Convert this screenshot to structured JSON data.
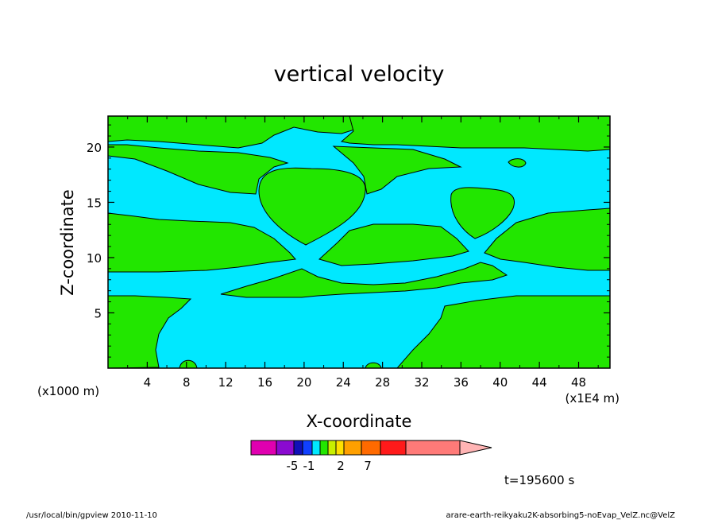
{
  "chart_data": {
    "type": "heatmap",
    "title": "vertical velocity",
    "xlabel": "X-coordinate",
    "ylabel": "Z-coordinate",
    "x_unit_note": "(x1E4 m)",
    "y_unit_note": "(x1000 m)",
    "xlim": [
      0,
      51.2
    ],
    "ylim": [
      0,
      22.8
    ],
    "x_ticks": [
      "4",
      "8",
      "12",
      "16",
      "20",
      "24",
      "28",
      "32",
      "36",
      "40",
      "44",
      "48"
    ],
    "y_ticks": [
      "5",
      "10",
      "15",
      "20"
    ],
    "background_level_color": "#00e8ff",
    "positive_level_color": "#22e600",
    "contour_color": "#000000",
    "colorbar": {
      "colors": [
        "#e000b0",
        "#8a0ad0",
        "#1010b8",
        "#1040ff",
        "#00e8ff",
        "#22e600",
        "#c8f000",
        "#ffe000",
        "#ffa000",
        "#ff6a00",
        "#ff1a1a",
        "#ff7a78",
        "#ffb4b4"
      ],
      "tick_labels": [
        "-5",
        "-1",
        "2",
        "7"
      ],
      "extend": "max"
    },
    "regions": [
      {
        "name": "left-mid-band",
        "x": [
          0,
          20
        ],
        "z": [
          10,
          14
        ]
      },
      {
        "name": "center-dome",
        "x": [
          15,
          26
        ],
        "z": [
          11,
          18
        ]
      },
      {
        "name": "right-dome",
        "x": [
          35,
          41
        ],
        "z": [
          11.5,
          16
        ]
      },
      {
        "name": "center-mid-band",
        "x": [
          22,
          36
        ],
        "z": [
          9.5,
          13
        ]
      },
      {
        "name": "right-mid-band",
        "x": [
          38,
          51.2
        ],
        "z": [
          9,
          14
        ]
      },
      {
        "name": "lower-left",
        "x": [
          0,
          8
        ],
        "z": [
          0,
          6.8
        ]
      },
      {
        "name": "lower-right",
        "x": [
          30,
          51.2
        ],
        "z": [
          0,
          6.8
        ]
      },
      {
        "name": "low-center-ridge",
        "x": [
          12,
          41
        ],
        "z": [
          6.5,
          9
        ]
      },
      {
        "name": "upper-left",
        "x": [
          0,
          26
        ],
        "z": [
          16,
          22.8
        ]
      },
      {
        "name": "upper-right",
        "x": [
          26,
          51.2
        ],
        "z": [
          19.5,
          22.8
        ]
      }
    ]
  },
  "time_label": "t=195600 s",
  "footer": {
    "left": "/usr/local/bin/gpview  2010-11-10",
    "right": "arare-earth-reikyaku2K-absorbing5-noEvap_VelZ.nc@VelZ"
  }
}
